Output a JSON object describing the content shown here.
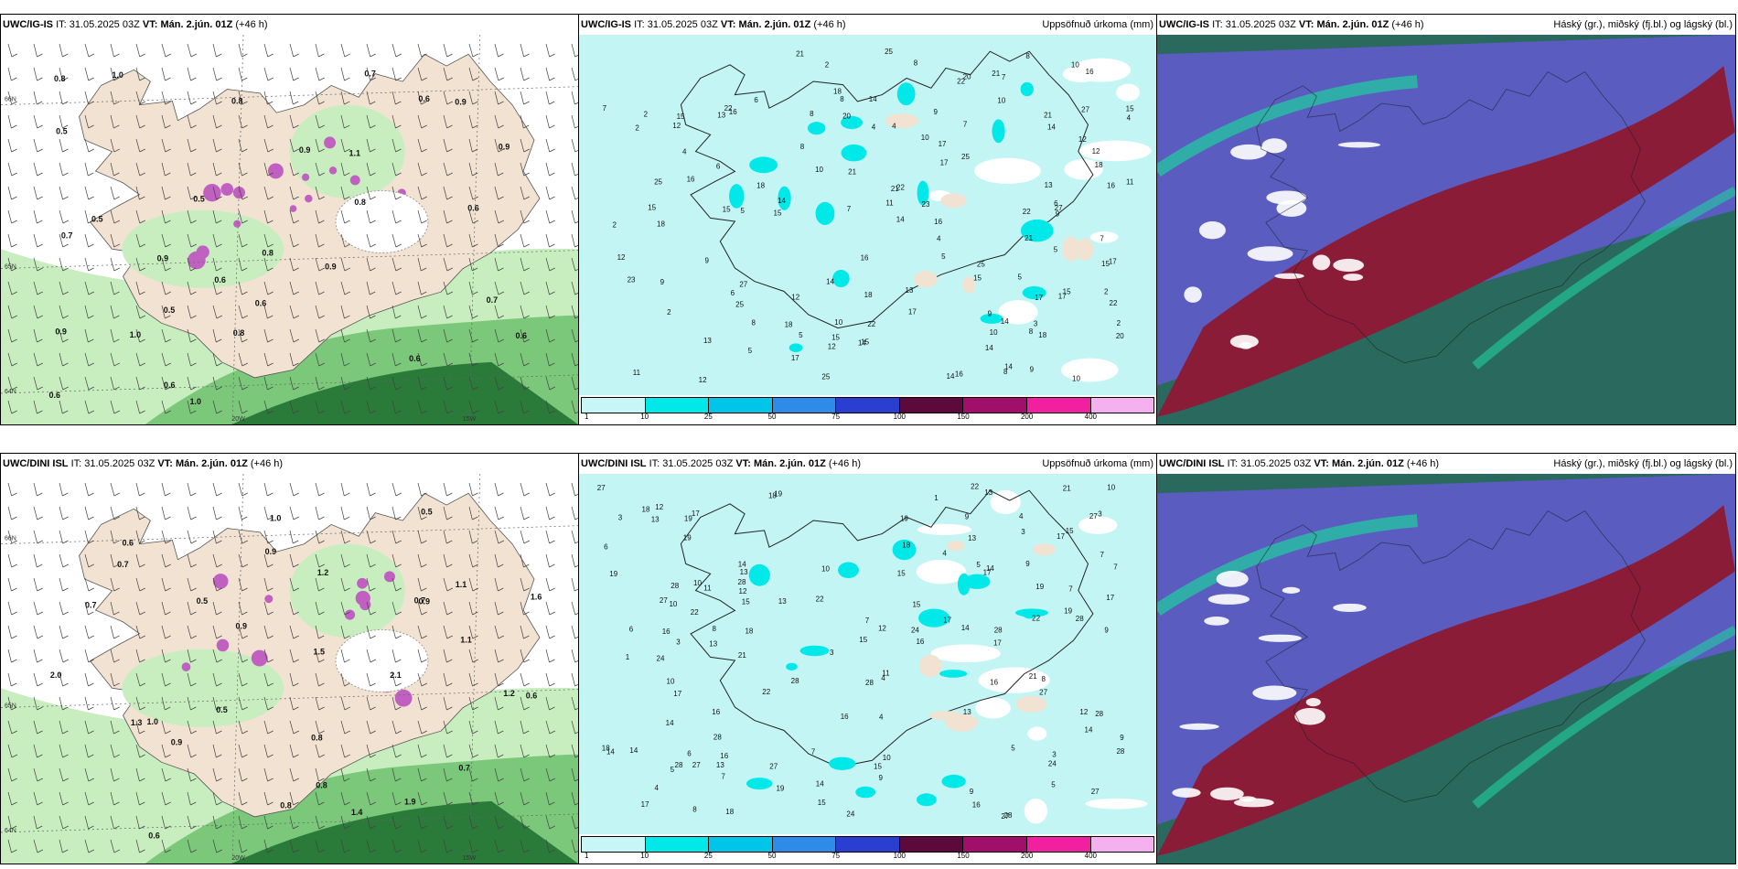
{
  "panels": [
    {
      "id": "p1",
      "model": "UWC/IG-IS",
      "it_label": "IT:",
      "it_value": "31.05.2025 03Z",
      "vt_label": "VT:",
      "vt_value": "Mán. 2.jún. 01Z",
      "lead": "(+46 h)",
      "right_title": "",
      "kind": "wind",
      "grid_labels": [
        "66N",
        "65N",
        "64N",
        "25W",
        "20W",
        "15W"
      ],
      "values": [
        "0.7",
        "0.8",
        "0.9",
        "0.6",
        "0.6",
        "0.6",
        "0.9",
        "0.5",
        "0.7",
        "0.6",
        "0.8",
        "1.0",
        "0.9",
        "0.6",
        "0.5",
        "0.8",
        "0.9",
        "0.6",
        "1.1",
        "0.6",
        "0.5",
        "0.8",
        "0.9",
        "1.0",
        "0.6",
        "0.7",
        "0.5",
        "1.0",
        "0.8",
        "0.9"
      ]
    },
    {
      "id": "p2",
      "model": "UWC/IG-IS",
      "it_label": "IT:",
      "it_value": "31.05.2025 03Z",
      "vt_label": "VT:",
      "vt_value": "Mán. 2.jún. 01Z",
      "lead": "(+46 h)",
      "right_title": "Uppsöfnuð úrkoma (mm)",
      "kind": "precip",
      "values": [
        "5",
        "6",
        "7",
        "8",
        "9",
        "10",
        "11",
        "12",
        "13",
        "14",
        "15",
        "16",
        "17",
        "18",
        "20",
        "21",
        "22",
        "23",
        "25",
        "27",
        "3",
        "4",
        "2"
      ]
    },
    {
      "id": "p3",
      "model": "UWC/IG-IS",
      "it_label": "IT:",
      "it_value": "31.05.2025 03Z",
      "vt_label": "VT:",
      "vt_value": "Mán. 2.jún. 01Z",
      "lead": "(+46 h)",
      "right_title": "Háský (gr.), miðský (fj.bl.) og lágský (bl.)",
      "kind": "cloud"
    },
    {
      "id": "p4",
      "model": "UWC/DINI ISL",
      "it_label": "IT:",
      "it_value": "31.05.2025 03Z",
      "vt_label": "VT:",
      "vt_value": "Mán. 2.jún. 01Z",
      "lead": "(+46 h)",
      "right_title": "",
      "kind": "wind",
      "grid_labels": [
        "66N",
        "65N",
        "64N",
        "25W",
        "20W",
        "15W"
      ],
      "values": [
        "0.6",
        "0.7",
        "0.9",
        "0.5",
        "0.8",
        "1.0",
        "1.1",
        "1.2",
        "0.6",
        "0.7",
        "0.9",
        "1.3",
        "1.5",
        "0.8",
        "0.5",
        "0.9",
        "1.0",
        "0.7",
        "1.6",
        "1.9",
        "2.0",
        "2.1",
        "0.8",
        "0.6",
        "1.1",
        "0.5",
        "1.4",
        "0.9",
        "1.2",
        "0.7"
      ]
    },
    {
      "id": "p5",
      "model": "UWC/DINI ISL",
      "it_label": "IT:",
      "it_value": "31.05.2025 03Z",
      "vt_label": "VT:",
      "vt_value": "Mán. 2.jún. 01Z",
      "lead": "(+46 h)",
      "right_title": "Uppsöfnuð úrkoma (mm)",
      "kind": "precip",
      "values": [
        "5",
        "4",
        "6",
        "7",
        "8",
        "9",
        "10",
        "11",
        "12",
        "13",
        "14",
        "15",
        "16",
        "17",
        "18",
        "19",
        "21",
        "22",
        "24",
        "27",
        "28",
        "3",
        "1"
      ]
    },
    {
      "id": "p6",
      "model": "UWC/DINI ISL",
      "it_label": "IT:",
      "it_value": "31.05.2025 03Z",
      "vt_label": "VT:",
      "vt_value": "Mán. 2.jún. 01Z",
      "lead": "(+46 h)",
      "right_title": "Háský (gr.), miðský (fj.bl.) og lágský (bl.)",
      "kind": "cloud"
    }
  ],
  "colorbar": {
    "labels": [
      "1",
      "10",
      "25",
      "50",
      "75",
      "100",
      "150",
      "200",
      "400"
    ],
    "colors": [
      "#c8f6f6",
      "#00e8e8",
      "#00c4e8",
      "#2e8ce6",
      "#2a3fd0",
      "#5c0a3c",
      "#a0106a",
      "#f020a0",
      "#f5b0f0"
    ]
  },
  "colors": {
    "sea_precip": "#c4f5f5",
    "land": "#f2e2d2",
    "wind_sea": "#ffffff",
    "green_light": "#c8eec0",
    "green_mid": "#7cc87a",
    "green_dark": "#2a7a3a",
    "purple": "#c060c0",
    "cloud_red": "#8a1c38",
    "cloud_blue": "#5a5cc0",
    "cloud_teal": "#2a6a5e",
    "cloud_green": "#20d0a0"
  }
}
